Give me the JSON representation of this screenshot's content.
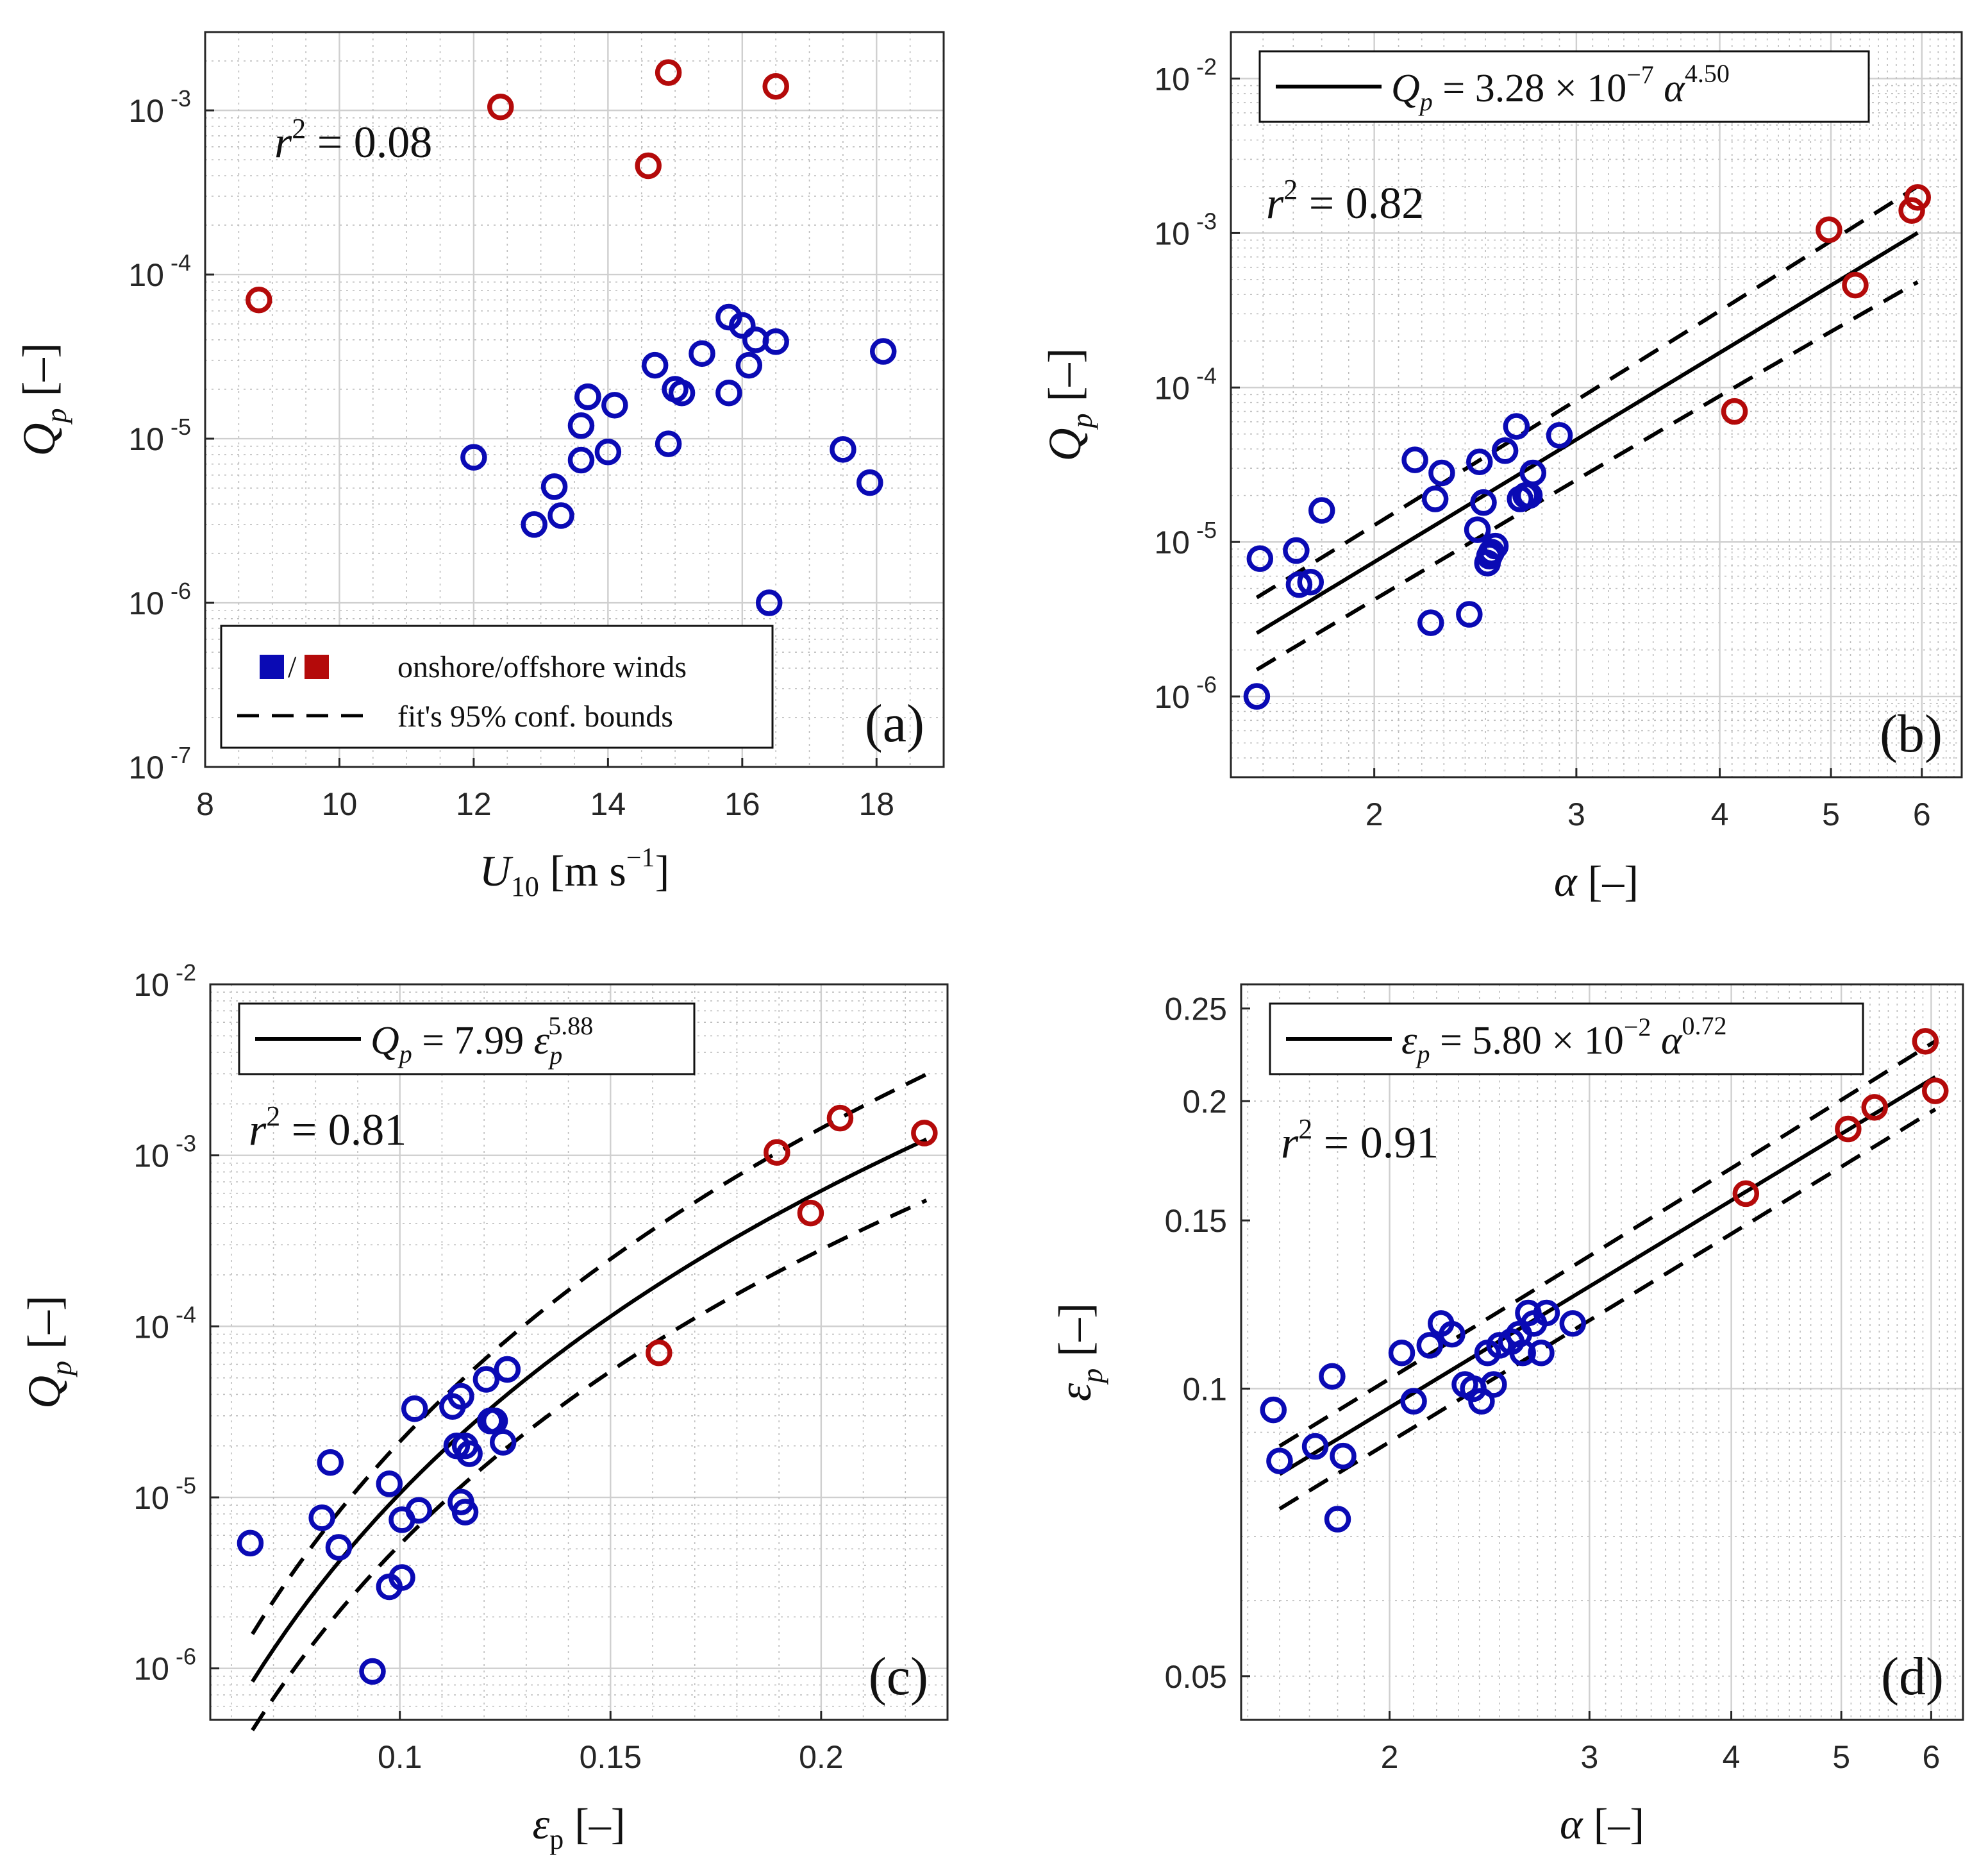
{
  "colors": {
    "onshore": "#0a0ab4",
    "offshore": "#b40a0a",
    "fit": "#000000",
    "grid": "#d6d6d6"
  },
  "chart_data": [
    {
      "id": "a",
      "type": "scatter",
      "panel_label": "(a)",
      "xlabel": "U_10 [m s^-1]",
      "xlabel_parts": {
        "var": "U",
        "sub": "10",
        "unit": "[m s",
        "sup": "−1",
        "close": "]"
      },
      "ylabel": "Q_p [–]",
      "ylabel_parts": {
        "var": "Q",
        "sub": "p",
        "unit": "[–]"
      },
      "xscale": "linear",
      "yscale": "log",
      "xlim": [
        8,
        19
      ],
      "ylim": [
        1e-07,
        0.003
      ],
      "xticks": [
        {
          "v": 8,
          "t": "8"
        },
        {
          "v": 10,
          "t": "10"
        },
        {
          "v": 12,
          "t": "12"
        },
        {
          "v": 14,
          "t": "14"
        },
        {
          "v": 16,
          "t": "16"
        },
        {
          "v": 18,
          "t": "18"
        }
      ],
      "yticks": [
        {
          "v": 1e-07,
          "b": "10",
          "e": "-7"
        },
        {
          "v": 1e-06,
          "b": "10",
          "e": "-6"
        },
        {
          "v": 1e-05,
          "b": "10",
          "e": "-5"
        },
        {
          "v": 0.0001,
          "b": "10",
          "e": "-4"
        },
        {
          "v": 0.001,
          "b": "10",
          "e": "-3"
        }
      ],
      "r2": {
        "lhs": "r",
        "sup": "2",
        "rhs": "= 0.08"
      },
      "legend": {
        "symbol_sep": "/",
        "entries": [
          "onshore/offshore winds",
          "fit's 95% conf. bounds"
        ]
      },
      "series": [
        {
          "name": "onshore",
          "color_key": "onshore",
          "x": [
            12.0,
            12.9,
            13.2,
            13.3,
            13.6,
            13.6,
            13.7,
            13.7,
            14.0,
            14.1,
            14.7,
            14.9,
            15.0,
            15.1,
            15.4,
            15.8,
            15.8,
            16.0,
            16.1,
            16.2,
            16.4,
            16.5,
            17.5,
            17.9,
            18.1
          ],
          "y": [
            7.7e-06,
            3e-06,
            5.1e-06,
            3.4e-06,
            7.4e-06,
            1.2e-05,
            1.8e-05,
            1.8e-05,
            8.3e-06,
            1.6e-05,
            2.8e-05,
            9.3e-06,
            2e-05,
            1.9e-05,
            3.3e-05,
            5.5e-05,
            1.9e-05,
            4.9e-05,
            2.8e-05,
            4e-05,
            1e-06,
            3.9e-05,
            8.6e-06,
            5.4e-06,
            3.4e-05
          ]
        },
        {
          "name": "offshore",
          "color_key": "offshore",
          "x": [
            8.8,
            12.4,
            14.6,
            14.9,
            16.5
          ],
          "y": [
            7e-05,
            0.00105,
            0.00046,
            0.0017,
            0.0014
          ]
        }
      ]
    },
    {
      "id": "b",
      "type": "scatter",
      "panel_label": "(b)",
      "xlabel": "α [–]",
      "xlabel_parts": {
        "var": "α",
        "unit": "[–]"
      },
      "ylabel": "Q_p [–]",
      "ylabel_parts": {
        "var": "Q",
        "sub": "p",
        "unit": "[–]"
      },
      "xscale": "log",
      "yscale": "log",
      "xlim": [
        1.5,
        6.5
      ],
      "ylim": [
        3e-07,
        0.02
      ],
      "xticks": [
        {
          "v": 2,
          "t": "2"
        },
        {
          "v": 3,
          "t": "3"
        },
        {
          "v": 4,
          "t": "4"
        },
        {
          "v": 5,
          "t": "5"
        },
        {
          "v": 6,
          "t": "6"
        }
      ],
      "yticks": [
        {
          "v": 1e-06,
          "b": "10",
          "e": "-6"
        },
        {
          "v": 1e-05,
          "b": "10",
          "e": "-5"
        },
        {
          "v": 0.0001,
          "b": "10",
          "e": "-4"
        },
        {
          "v": 0.001,
          "b": "10",
          "e": "-3"
        },
        {
          "v": 0.01,
          "b": "10",
          "e": "-2"
        }
      ],
      "r2": {
        "lhs": "r",
        "sup": "2",
        "rhs": "= 0.82"
      },
      "fit_legend": {
        "lhs": "Q",
        "lhs_sub": "p",
        "eq": "= 3.28 × 10",
        "exp1": "−7",
        "var": "α",
        "exp2": "4.50"
      },
      "fit": {
        "coef": 3.28e-07,
        "power": 4.5,
        "x_range": [
          1.58,
          5.95
        ],
        "upper_factor": 1.7,
        "upper_growth": 0.0,
        "band_lo": [
          0.58,
          0.48
        ],
        "band_hi": [
          1.7,
          2.0
        ]
      },
      "series": [
        {
          "name": "onshore",
          "color_key": "onshore",
          "x": [
            1.58,
            1.59,
            1.71,
            1.72,
            1.76,
            1.8,
            2.17,
            2.24,
            2.26,
            2.29,
            2.42,
            2.46,
            2.47,
            2.49,
            2.51,
            2.52,
            2.53,
            2.55,
            2.6,
            2.66,
            2.68,
            2.71,
            2.73,
            2.75,
            2.9
          ],
          "y": [
            1e-06,
            7.8e-06,
            8.8e-06,
            5.3e-06,
            5.5e-06,
            1.6e-05,
            3.4e-05,
            3e-06,
            1.9e-05,
            2.8e-05,
            3.4e-06,
            1.2e-05,
            3.3e-05,
            1.8e-05,
            7.3e-06,
            8.1e-06,
            8.6e-06,
            9.4e-06,
            3.9e-05,
            5.6e-05,
            1.9e-05,
            2e-05,
            2e-05,
            2.8e-05,
            4.9e-05
          ]
        },
        {
          "name": "offshore",
          "color_key": "offshore",
          "x": [
            4.12,
            4.98,
            5.25,
            5.88,
            5.95
          ],
          "y": [
            7e-05,
            0.00105,
            0.00046,
            0.0014,
            0.0017
          ]
        }
      ]
    },
    {
      "id": "c",
      "type": "scatter",
      "panel_label": "(c)",
      "xlabel": "ε_p [–]",
      "xlabel_parts": {
        "var": "ε",
        "sub": "p",
        "unit": "[–]"
      },
      "ylabel": "Q_p [–]",
      "ylabel_parts": {
        "var": "Q",
        "sub": "p",
        "unit": "[–]"
      },
      "xscale": "linear",
      "yscale": "log",
      "xlim": [
        0.055,
        0.23
      ],
      "ylim": [
        5e-07,
        0.01
      ],
      "xticks": [
        {
          "v": 0.1,
          "t": "0.1"
        },
        {
          "v": 0.15,
          "t": "0.15"
        },
        {
          "v": 0.2,
          "t": "0.2"
        }
      ],
      "yticks": [
        {
          "v": 1e-06,
          "b": "10",
          "e": "-6"
        },
        {
          "v": 1e-05,
          "b": "10",
          "e": "-5"
        },
        {
          "v": 0.0001,
          "b": "10",
          "e": "-4"
        },
        {
          "v": 0.001,
          "b": "10",
          "e": "-3"
        },
        {
          "v": 0.01,
          "b": "10",
          "e": "-2"
        }
      ],
      "r2": {
        "lhs": "r",
        "sup": "2",
        "rhs": "= 0.81"
      },
      "fit_legend": {
        "lhs": "Q",
        "lhs_sub": "p",
        "eq": "= 7.99",
        "var": "ε",
        "var_sub": "p",
        "exp2": "5.88"
      },
      "fit": {
        "coef": 7.99,
        "power": 5.88,
        "x_range": [
          0.065,
          0.225
        ],
        "band_lo": [
          0.52,
          0.44
        ],
        "band_hi": [
          1.9,
          2.4
        ]
      },
      "series": [
        {
          "name": "onshore",
          "color_key": "onshore",
          "x": [
            0.0645,
            0.0815,
            0.0835,
            0.0855,
            0.0935,
            0.0975,
            0.0975,
            0.1005,
            0.1005,
            0.1035,
            0.1045,
            0.1125,
            0.1135,
            0.1145,
            0.1145,
            0.1155,
            0.1155,
            0.1165,
            0.1205,
            0.1215,
            0.1215,
            0.1225,
            0.1245,
            0.1255,
            0.1255
          ],
          "y": [
            5.4e-06,
            7.6e-06,
            1.6e-05,
            5.1e-06,
            9.6e-07,
            3e-06,
            1.2e-05,
            3.4e-06,
            7.4e-06,
            3.3e-05,
            8.4e-06,
            3.4e-05,
            2e-05,
            3.9e-05,
            9.4e-06,
            8.2e-06,
            2e-05,
            1.8e-05,
            4.9e-05,
            2.8e-05,
            2.8e-05,
            2.8e-05,
            2.1e-05,
            5.6e-05,
            5.6e-05
          ]
        },
        {
          "name": "offshore",
          "color_key": "offshore",
          "x": [
            0.1615,
            0.1895,
            0.1975,
            0.2045,
            0.2245
          ],
          "y": [
            7e-05,
            0.00104,
            0.00046,
            0.00165,
            0.00135
          ]
        }
      ]
    },
    {
      "id": "d",
      "type": "scatter",
      "panel_label": "(d)",
      "xlabel": "α [–]",
      "xlabel_parts": {
        "var": "α",
        "unit": "[–]"
      },
      "ylabel": "ε_p [–]",
      "ylabel_parts": {
        "var": "ε",
        "sub": "p",
        "unit": "[–]"
      },
      "xscale": "log",
      "yscale": "log",
      "xlim": [
        1.48,
        6.4
      ],
      "ylim": [
        0.045,
        0.265
      ],
      "xticks": [
        {
          "v": 2,
          "t": "2"
        },
        {
          "v": 3,
          "t": "3"
        },
        {
          "v": 4,
          "t": "4"
        },
        {
          "v": 5,
          "t": "5"
        },
        {
          "v": 6,
          "t": "6"
        }
      ],
      "yticks": [
        {
          "v": 0.05,
          "t": "0.05"
        },
        {
          "v": 0.1,
          "t": "0.1"
        },
        {
          "v": 0.15,
          "t": "0.15"
        },
        {
          "v": 0.2,
          "t": "0.2"
        },
        {
          "v": 0.25,
          "t": "0.25"
        }
      ],
      "r2": {
        "lhs": "r",
        "sup": "2",
        "rhs": "= 0.91"
      },
      "fit_legend": {
        "lhs": "ε",
        "lhs_sub": "p",
        "eq": "= 5.80 × 10",
        "exp1": "−2",
        "var": "α",
        "exp2": "0.72"
      },
      "fit": {
        "coef": 0.058,
        "power": 0.72,
        "x_range": [
          1.6,
          6.05
        ],
        "band_lo": [
          0.92,
          0.925
        ],
        "band_hi": [
          1.07,
          1.09
        ]
      },
      "series": [
        {
          "name": "onshore",
          "color_key": "onshore",
          "x": [
            1.58,
            1.6,
            1.72,
            1.78,
            1.8,
            1.82,
            2.05,
            2.1,
            2.17,
            2.22,
            2.27,
            2.33,
            2.37,
            2.41,
            2.44,
            2.47,
            2.5,
            2.56,
            2.6,
            2.62,
            2.65,
            2.68,
            2.72,
            2.75,
            2.9
          ],
          "y": [
            0.095,
            0.084,
            0.087,
            0.103,
            0.073,
            0.085,
            0.109,
            0.097,
            0.111,
            0.117,
            0.114,
            0.101,
            0.1,
            0.097,
            0.109,
            0.101,
            0.111,
            0.112,
            0.114,
            0.109,
            0.12,
            0.117,
            0.109,
            0.12,
            0.117
          ]
        },
        {
          "name": "offshore",
          "color_key": "offshore",
          "x": [
            4.12,
            5.07,
            5.35,
            5.93,
            6.05
          ],
          "y": [
            0.16,
            0.187,
            0.197,
            0.231,
            0.205
          ]
        }
      ]
    }
  ]
}
